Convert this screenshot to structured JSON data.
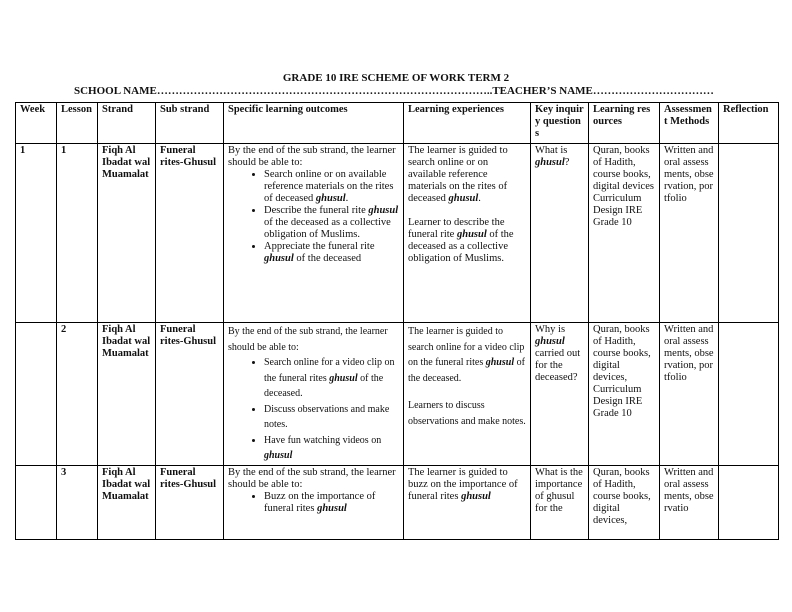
{
  "title": "GRADE 10 IRE SCHEME OF WORK TERM 2",
  "school_line": "SCHOOL NAME………………………………………………………………………………..TEACHER’S NAME……………………………",
  "headers": [
    "Week",
    "Lesson",
    "Strand",
    "Sub strand",
    "Specific learning outcomes",
    "Learning experiences",
    "Key inquiry questions",
    "Learning resources",
    "Assessment Methods",
    "Reflection"
  ],
  "rows": [
    {
      "week": "1",
      "lesson": "1",
      "strand": "Fiqh Al Ibadat wal Muamalat",
      "sub_strand": "Funeral rites-Ghusul",
      "outcomes_intro": "By the end of the sub strand, the learner should be able to:",
      "outcomes": [
        "Search online or on available reference materials on the rites of deceased ghusul.",
        "Describe the funeral rite ghusul of the deceased as a collective obligation of Muslims.",
        "Appreciate the funeral rite ghusul of the deceased"
      ],
      "experiences": [
        "The learner is guided to search online or on available reference materials on the rites of deceased ghusul.",
        "Learner to describe the funeral rite ghusul of the deceased as a collective obligation of Muslims."
      ],
      "question": "What is ghusul?",
      "resources": "Quran, books of Hadith, course books, digital devices Curriculum Design IRE Grade 10",
      "assessment": "Written and oral assessments, observation, portfolio",
      "reflection": ""
    },
    {
      "week": "",
      "lesson": "2",
      "strand": "Fiqh Al Ibadat wal Muamalat",
      "sub_strand": "Funeral rites-Ghusul",
      "outcomes_intro": "By the end of the sub strand, the learner should be able to:",
      "outcomes": [
        "Search online for a video clip on the funeral rites ghusul of the deceased.",
        "Discuss observations and make notes.",
        "Have fun watching videos on ghusul"
      ],
      "experiences": [
        "The learner is guided to search online for a video clip on the funeral rites ghusul of the deceased.",
        "Learners to discuss observations and make notes."
      ],
      "question": "Why is ghusul carried out for the deceased?",
      "resources": "Quran, books of Hadith, course books, digital devices, Curriculum Design IRE Grade 10",
      "assessment": "Written and oral assessments, observation, portfolio",
      "reflection": ""
    },
    {
      "week": "",
      "lesson": "3",
      "strand": "Fiqh Al Ibadat wal Muamalat",
      "sub_strand": "Funeral rites-Ghusul",
      "outcomes_intro": "By the end of the sub strand, the learner should be able to:",
      "outcomes": [
        "Buzz on the importance of funeral rites ghusul"
      ],
      "experiences": [
        "The learner is guided to buzz on the importance of funeral rites ghusul"
      ],
      "question": "What is the importance of ghusul for the",
      "resources": "Quran, books of Hadith, course books, digital devices,",
      "assessment": "Written and oral assessments, observatio",
      "reflection": ""
    }
  ]
}
